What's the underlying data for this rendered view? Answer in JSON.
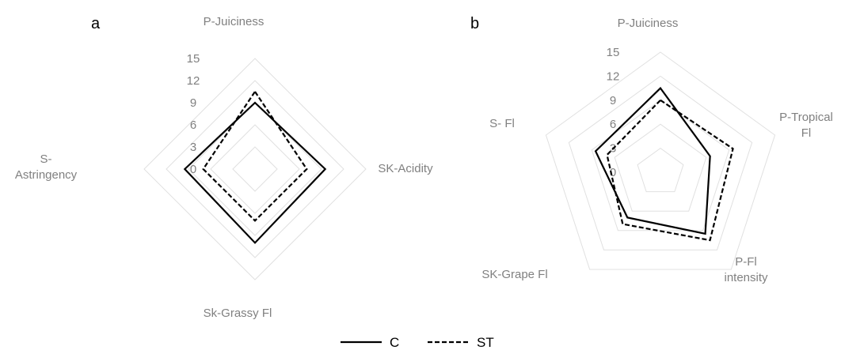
{
  "chart_data": [
    {
      "type": "radar",
      "panel_label": "a",
      "axes": [
        {
          "label_lines": [
            "P-Juiciness"
          ]
        },
        {
          "label_lines": [
            "SK-Acidity"
          ]
        },
        {
          "label_lines": [
            "Sk-Grassy Fl"
          ]
        },
        {
          "label_lines": [
            "S-",
            "Astringency"
          ]
        }
      ],
      "ticks": [
        0,
        3,
        6,
        9,
        12,
        15
      ],
      "range": [
        0,
        15
      ],
      "grid": true,
      "series": [
        {
          "name": "C",
          "values": [
            9,
            9.5,
            10,
            9.5
          ]
        },
        {
          "name": "ST",
          "values": [
            10.5,
            7,
            7,
            7
          ]
        }
      ]
    },
    {
      "type": "radar",
      "panel_label": "b",
      "axes": [
        {
          "label_lines": [
            "P-Juiciness"
          ]
        },
        {
          "label_lines": [
            "P-Tropical",
            "Fl"
          ]
        },
        {
          "label_lines": [
            "P-Fl",
            "intensity"
          ]
        },
        {
          "label_lines": [
            "SK-Grape Fl"
          ]
        },
        {
          "label_lines": [
            "S- Fl"
          ]
        }
      ],
      "ticks": [
        0,
        3,
        6,
        9,
        12,
        15
      ],
      "range": [
        0,
        15
      ],
      "grid": true,
      "series": [
        {
          "name": "C",
          "values": [
            10.5,
            6.5,
            9.5,
            7,
            8.5
          ]
        },
        {
          "name": "ST",
          "values": [
            9,
            9.5,
            10.5,
            8,
            7
          ]
        }
      ]
    }
  ],
  "legend": {
    "position": "bottom",
    "items": [
      {
        "label": "C",
        "style": "solid"
      },
      {
        "label": "ST",
        "style": "dashed"
      }
    ]
  },
  "colors": {
    "grid": "#e0e0e0",
    "series_line": "#000000",
    "label_text": "#808080"
  }
}
